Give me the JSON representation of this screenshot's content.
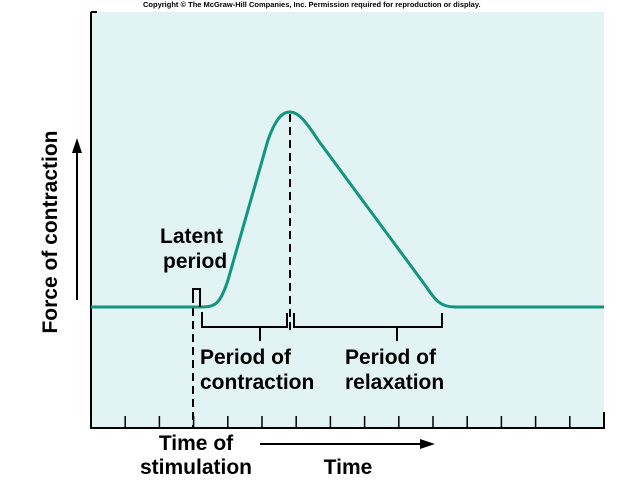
{
  "copyright": "Copyright © The McGraw-Hill Companies, Inc. Permission required for reproduction or display.",
  "y_axis_label": "Force of contraction",
  "x_axis_label": "Time",
  "labels": {
    "latent_line1": "Latent",
    "latent_line2": "period",
    "contraction_line1": "Period of",
    "contraction_line2": "contraction",
    "relaxation_line1": "Period of",
    "relaxation_line2": "relaxation",
    "stimulation_line1": "Time of",
    "stimulation_line2": "stimulation"
  },
  "colors": {
    "background": "#e1f4f3",
    "curve": "#12957f",
    "ink": "#000000"
  },
  "tick_count": 15
}
